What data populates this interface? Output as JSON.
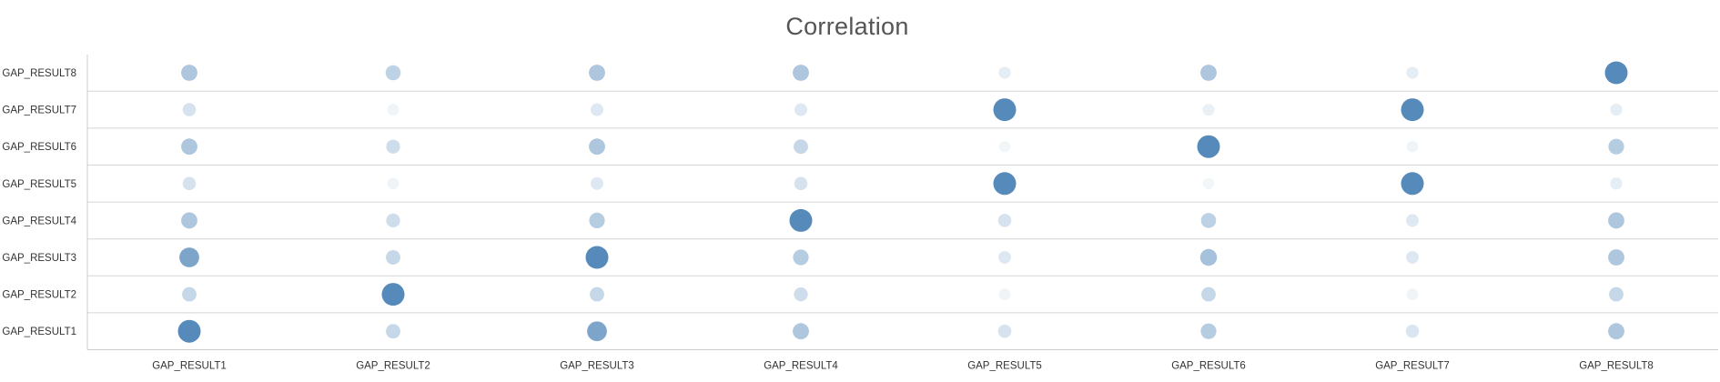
{
  "chart_data": {
    "type": "scatter",
    "title": "Correlation",
    "xlabel": "",
    "ylabel": "",
    "categories": [
      "GAP_RESULT1",
      "GAP_RESULT2",
      "GAP_RESULT3",
      "GAP_RESULT4",
      "GAP_RESULT5",
      "GAP_RESULT6",
      "GAP_RESULT7",
      "GAP_RESULT8"
    ],
    "x": [
      "GAP_RESULT1",
      "GAP_RESULT2",
      "GAP_RESULT3",
      "GAP_RESULT4",
      "GAP_RESULT5",
      "GAP_RESULT6",
      "GAP_RESULT7",
      "GAP_RESULT8"
    ],
    "y": [
      "GAP_RESULT1",
      "GAP_RESULT2",
      "GAP_RESULT3",
      "GAP_RESULT4",
      "GAP_RESULT5",
      "GAP_RESULT6",
      "GAP_RESULT7",
      "GAP_RESULT8"
    ],
    "values": [
      [
        1.0,
        0.3,
        0.75,
        0.45,
        0.2,
        0.4,
        0.18,
        0.45
      ],
      [
        0.3,
        1.0,
        0.3,
        0.25,
        0.05,
        0.3,
        0.05,
        0.3
      ],
      [
        0.75,
        0.3,
        1.0,
        0.4,
        0.15,
        0.5,
        0.15,
        0.45
      ],
      [
        0.45,
        0.25,
        0.4,
        1.0,
        0.2,
        0.35,
        0.15,
        0.45
      ],
      [
        0.2,
        0.05,
        0.15,
        0.2,
        1.0,
        0.03,
        1.0,
        0.1
      ],
      [
        0.45,
        0.25,
        0.45,
        0.3,
        0.03,
        1.0,
        0.05,
        0.4
      ],
      [
        0.2,
        0.05,
        0.15,
        0.15,
        1.0,
        0.08,
        1.0,
        0.1
      ],
      [
        0.45,
        0.35,
        0.45,
        0.45,
        0.1,
        0.45,
        0.1,
        1.0
      ]
    ],
    "value_range": [
      0,
      1
    ],
    "grid": true,
    "legend": "none",
    "colors": {
      "marker": "#4f86b8",
      "gridline": "#d5d5d5",
      "axis": "#cccccc",
      "text": "#333333",
      "title": "#555555"
    }
  }
}
